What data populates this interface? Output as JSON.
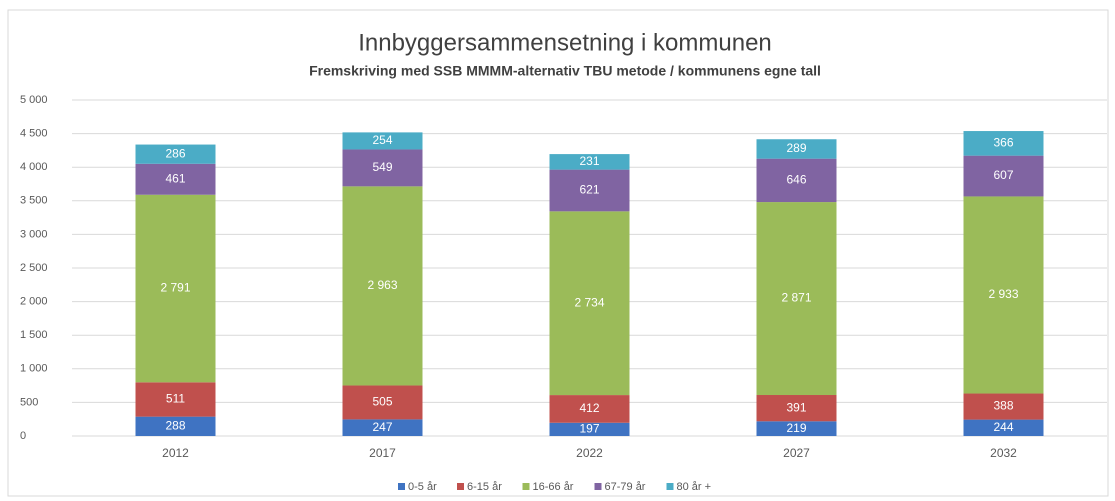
{
  "chart_data": {
    "type": "stacked_bar",
    "title": "Innbyggersammensetning i kommunen",
    "subtitle": "Fremskriving med SSB MMMM-alternativ TBU metode / kommunens egne tall",
    "categories": [
      "2012",
      "2017",
      "2022",
      "2027",
      "2032"
    ],
    "series": [
      {
        "name": "0-5 år",
        "color": "#3f73c2",
        "values": [
          288,
          247,
          197,
          219,
          244
        ]
      },
      {
        "name": "6-15 år",
        "color": "#c0504d",
        "values": [
          511,
          505,
          412,
          391,
          388
        ]
      },
      {
        "name": "16-66 år",
        "color": "#9bbb59",
        "values": [
          2791,
          2963,
          2734,
          2871,
          2933
        ],
        "value_labels": [
          "2 791",
          "2 963",
          "2 734",
          "2 871",
          "2 933"
        ]
      },
      {
        "name": "67-79 år",
        "color": "#8064a2",
        "values": [
          461,
          549,
          621,
          646,
          607
        ]
      },
      {
        "name": "80 år +",
        "color": "#4bacc6",
        "values": [
          286,
          254,
          231,
          289,
          366
        ]
      }
    ],
    "ylim": [
      0,
      5000
    ],
    "yticks": [
      0,
      500,
      {
        "value": 1000,
        "label": "1 000"
      },
      {
        "value": 1500,
        "label": "1 500"
      },
      {
        "value": 2000,
        "label": "2 000"
      },
      {
        "value": 2500,
        "label": "2 500"
      },
      {
        "value": 3000,
        "label": "3 000"
      },
      {
        "value": 3500,
        "label": "3 500"
      },
      {
        "value": 4000,
        "label": "4 000"
      },
      {
        "value": 4500,
        "label": "4 500"
      },
      {
        "value": 5000,
        "label": "5 000"
      }
    ],
    "grid": true,
    "legend": "bottom"
  }
}
